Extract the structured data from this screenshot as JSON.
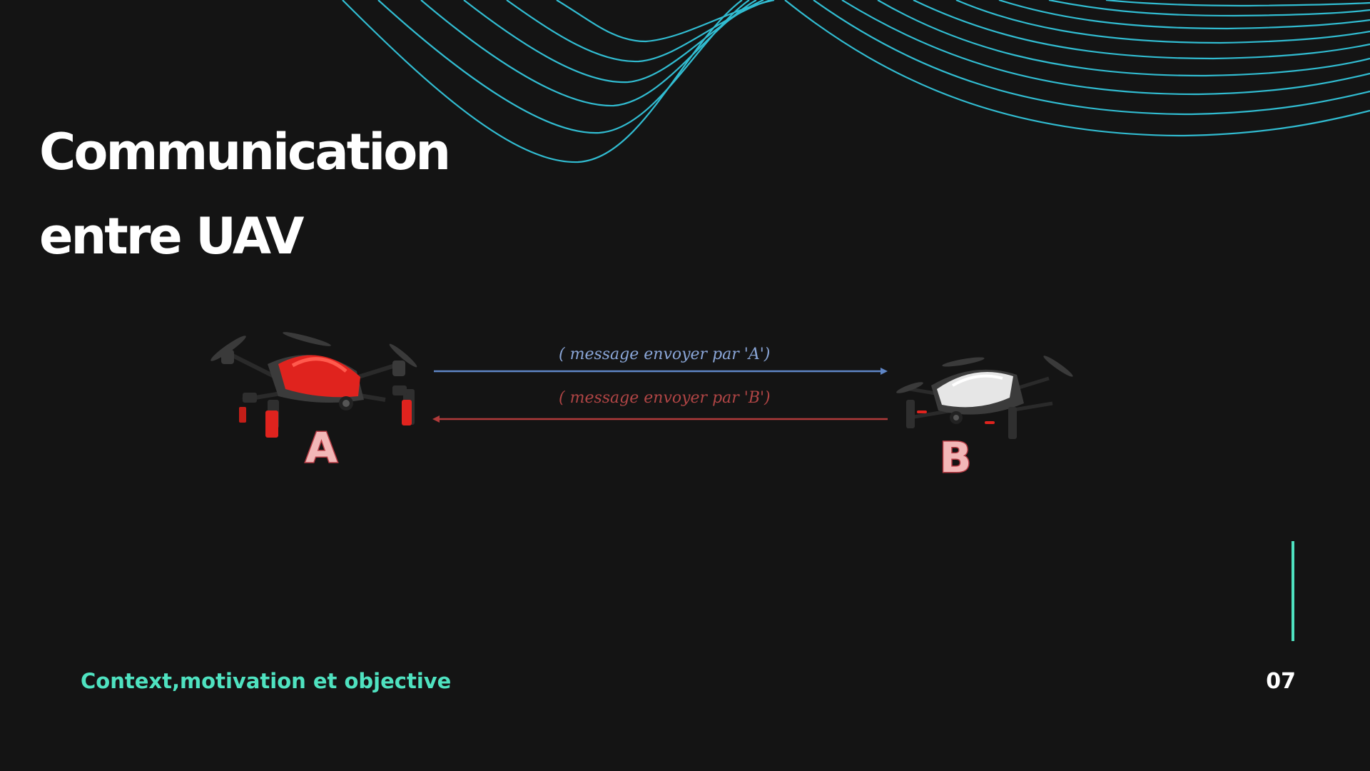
{
  "slide": {
    "title_line_1": "Communication",
    "title_line_2": "entre UAV",
    "footer_text": "Context,motivation et objective",
    "page_number": "07"
  },
  "diagram": {
    "node_a": {
      "label": "A",
      "body_color": "#e0231e"
    },
    "node_b": {
      "label": "B",
      "body_color": "#e6e6e6"
    },
    "message_a_to_b": {
      "text": "( message envoyer par 'A')",
      "color": "#5f86c6"
    },
    "message_b_to_a": {
      "text": "( message envoyer par 'B')",
      "color": "#b03a3a"
    }
  },
  "colors": {
    "background": "#141414",
    "accent": "#4fe2c0",
    "wave_lines": "#33c6dc",
    "title": "#ffffff"
  },
  "icons": {
    "drone_a": "drone-icon",
    "drone_b": "drone-icon",
    "decoration": "wave-lines"
  }
}
